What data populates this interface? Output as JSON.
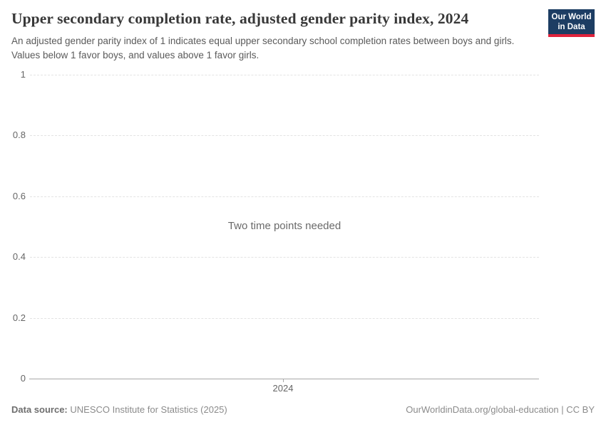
{
  "header": {
    "title": "Upper secondary completion rate, adjusted gender parity index, 2024",
    "subtitle": "An adjusted gender parity index of 1 indicates equal upper secondary school completion rates between boys and girls. Values below 1 favor boys, and values above 1 favor girls.",
    "logo": {
      "line1": "Our World",
      "line2": "in Data"
    }
  },
  "chart_data": {
    "type": "line",
    "title": "Upper secondary completion rate, adjusted gender parity index, 2024",
    "series": [],
    "message": "Two time points needed",
    "x_ticks": [
      "2024"
    ],
    "y_ticks": [
      "0",
      "0.2",
      "0.4",
      "0.6",
      "0.8",
      "1"
    ],
    "ylim": [
      0,
      1
    ],
    "xlabel": "",
    "ylabel": "",
    "grid": "horizontal-dashed",
    "legend": "none"
  },
  "footer": {
    "data_source_label": "Data source:",
    "data_source": "UNESCO Institute for Statistics (2025)",
    "link": "OurWorldinData.org/global-education | CC BY"
  },
  "colors": {
    "logo_background": "#1d3d63",
    "logo_stripe": "#e0233c",
    "title_text": "#383838",
    "subtitle_text": "#5a5a5a",
    "axis_text": "#666666",
    "gridline": "#e3e3e3",
    "axis_line": "#a8a8a8",
    "message_text": "#6a6a6a",
    "footer_text": "#8b8b8b"
  }
}
